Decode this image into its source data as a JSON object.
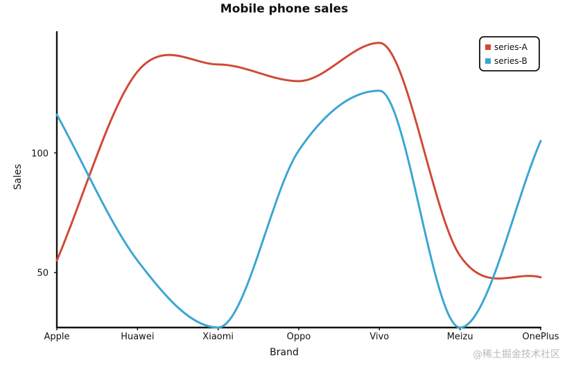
{
  "chart_data": {
    "type": "line",
    "title": "Mobile phone sales",
    "xlabel": "Brand",
    "ylabel": "Sales",
    "categories": [
      "Apple",
      "Huawei",
      "Xiaomi",
      "Oppo",
      "Vivo",
      "Meizu",
      "OnePlus"
    ],
    "series": [
      {
        "name": "series-A",
        "color": "#d04a35",
        "values": [
          55,
          134,
          137,
          130,
          146,
          57,
          48
        ]
      },
      {
        "name": "series-B",
        "color": "#3ba6d2",
        "values": [
          116,
          55,
          27,
          101,
          126,
          27,
          105
        ]
      }
    ],
    "yticks": [
      50,
      100
    ],
    "ylim": [
      27,
      150
    ],
    "smooth": true,
    "grid": false,
    "legend": "top-right"
  },
  "watermark": "@稀土掘金技术社区"
}
